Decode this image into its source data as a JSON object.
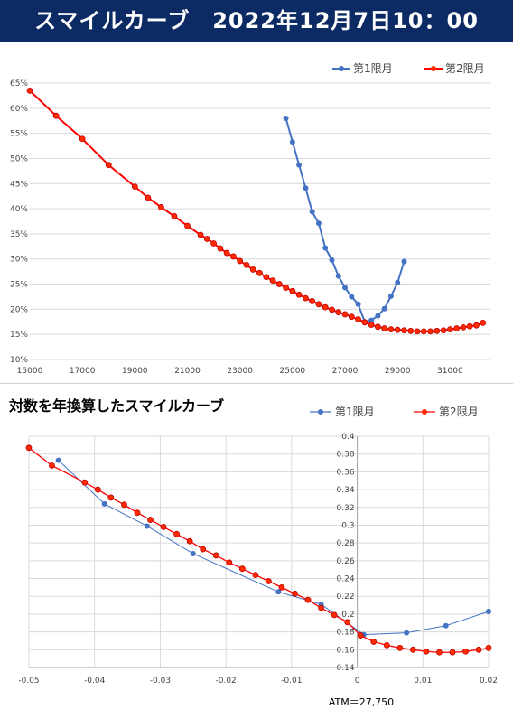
{
  "banner": {
    "title": "スマイルカーブ　2022年12月7日10：00"
  },
  "colors": {
    "series1": "#4472c4",
    "series2": "#ff0000",
    "series2_fill": "#ff2a00",
    "banner_bg": "#0c2a63",
    "grid": "#d9d9d9"
  },
  "chart_data": [
    {
      "type": "line",
      "title": "",
      "xlabel": "",
      "ylabel": "",
      "xlim": [
        15000,
        32500
      ],
      "ylim": [
        10,
        65
      ],
      "x_ticks": [
        15000,
        17000,
        19000,
        21000,
        23000,
        25000,
        27000,
        29000,
        31000
      ],
      "x_tick_labels": [
        "15000",
        "17000",
        "19000",
        "21000",
        "23000",
        "25000",
        "27000",
        "29000",
        "31000"
      ],
      "y_ticks": [
        10,
        15,
        20,
        25,
        30,
        35,
        40,
        45,
        50,
        55,
        60,
        65
      ],
      "y_tick_labels": [
        "10%",
        "15%",
        "20%",
        "25%",
        "30%",
        "35%",
        "40%",
        "45%",
        "50%",
        "55%",
        "60%",
        "65%"
      ],
      "grid": "horizontal",
      "legend": "top-right",
      "series": [
        {
          "name": "第1限月",
          "x": [
            24750,
            25000,
            25250,
            25500,
            25750,
            26000,
            26250,
            26500,
            26750,
            27000,
            27250,
            27500,
            27750,
            28000,
            28250,
            28500,
            28750,
            29000,
            29250
          ],
          "y": [
            58.0,
            53.3,
            48.7,
            44.1,
            39.4,
            37.1,
            32.2,
            29.8,
            26.6,
            24.3,
            22.5,
            21.0,
            17.5,
            17.8,
            18.7,
            20.1,
            22.6,
            25.3,
            29.5
          ]
        },
        {
          "name": "第2限月",
          "x": [
            15000,
            16000,
            17000,
            18000,
            19000,
            19500,
            20000,
            20500,
            21000,
            21500,
            21750,
            22000,
            22250,
            22500,
            22750,
            23000,
            23250,
            23500,
            23750,
            24000,
            24250,
            24500,
            24750,
            25000,
            25250,
            25500,
            25750,
            26000,
            26250,
            26500,
            26750,
            27000,
            27250,
            27500,
            27750,
            28000,
            28250,
            28500,
            28750,
            29000,
            29250,
            29500,
            29750,
            30000,
            30250,
            30500,
            30750,
            31000,
            31250,
            31500,
            31750,
            32000,
            32250
          ],
          "y": [
            63.5,
            58.5,
            53.9,
            48.7,
            44.4,
            42.2,
            40.3,
            38.5,
            36.6,
            34.8,
            34.0,
            33.1,
            32.1,
            31.2,
            30.5,
            29.6,
            28.8,
            27.9,
            27.2,
            26.4,
            25.7,
            25.0,
            24.3,
            23.6,
            22.9,
            22.2,
            21.6,
            21.0,
            20.4,
            19.9,
            19.4,
            19.0,
            18.5,
            18.0,
            17.4,
            16.9,
            16.5,
            16.2,
            16.0,
            15.9,
            15.8,
            15.7,
            15.6,
            15.6,
            15.6,
            15.7,
            15.8,
            16.0,
            16.2,
            16.4,
            16.6,
            16.8,
            17.3
          ]
        }
      ]
    },
    {
      "type": "line",
      "title": "対数を年換算したスマイルカーブ",
      "xlabel": "",
      "ylabel": "",
      "annotation": "ATM＝27,750",
      "xlim": [
        -0.05,
        0.02
      ],
      "ylim": [
        0.14,
        0.4
      ],
      "x_ticks": [
        -0.05,
        -0.04,
        -0.03,
        -0.02,
        -0.01,
        0,
        0.01,
        0.02
      ],
      "x_tick_labels": [
        "-0.05",
        "-0.04",
        "-0.03",
        "-0.02",
        "-0.01",
        "0",
        "0.01",
        "0.02"
      ],
      "y_ticks": [
        0.14,
        0.16,
        0.18,
        0.2,
        0.22,
        0.24,
        0.26,
        0.28,
        0.3,
        0.32,
        0.34,
        0.36,
        0.38,
        0.4
      ],
      "y_tick_labels": [
        "0.14",
        "0.16",
        "0.18",
        "0.2",
        "0.22",
        "0.24",
        "0.26",
        "0.28",
        "0.3",
        "0.32",
        "0.34",
        "0.36",
        "0.38",
        "0.4"
      ],
      "grid": "both",
      "legend": "top-right",
      "series": [
        {
          "name": "第1限月",
          "x": [
            -0.0455,
            -0.0385,
            -0.032,
            -0.025,
            -0.012,
            -0.0055,
            0.001,
            0.0075,
            0.0135,
            0.02
          ],
          "y": [
            0.373,
            0.324,
            0.299,
            0.268,
            0.225,
            0.211,
            0.177,
            0.179,
            0.187,
            0.203
          ]
        },
        {
          "name": "第2限月",
          "x": [
            -0.05,
            -0.0465,
            -0.0415,
            -0.0395,
            -0.0375,
            -0.0355,
            -0.0335,
            -0.0315,
            -0.0295,
            -0.0275,
            -0.0255,
            -0.0235,
            -0.0215,
            -0.0195,
            -0.0175,
            -0.0155,
            -0.0135,
            -0.0115,
            -0.0095,
            -0.0075,
            -0.0055,
            -0.0035,
            -0.0015,
            0.0005,
            0.0025,
            0.0045,
            0.0065,
            0.0085,
            0.0105,
            0.0125,
            0.0145,
            0.0165,
            0.0185,
            0.02
          ],
          "y": [
            0.387,
            0.367,
            0.348,
            0.34,
            0.331,
            0.323,
            0.314,
            0.306,
            0.298,
            0.29,
            0.282,
            0.273,
            0.266,
            0.258,
            0.251,
            0.244,
            0.237,
            0.23,
            0.223,
            0.216,
            0.207,
            0.199,
            0.191,
            0.176,
            0.169,
            0.165,
            0.162,
            0.16,
            0.158,
            0.157,
            0.157,
            0.158,
            0.16,
            0.162
          ]
        }
      ]
    }
  ]
}
